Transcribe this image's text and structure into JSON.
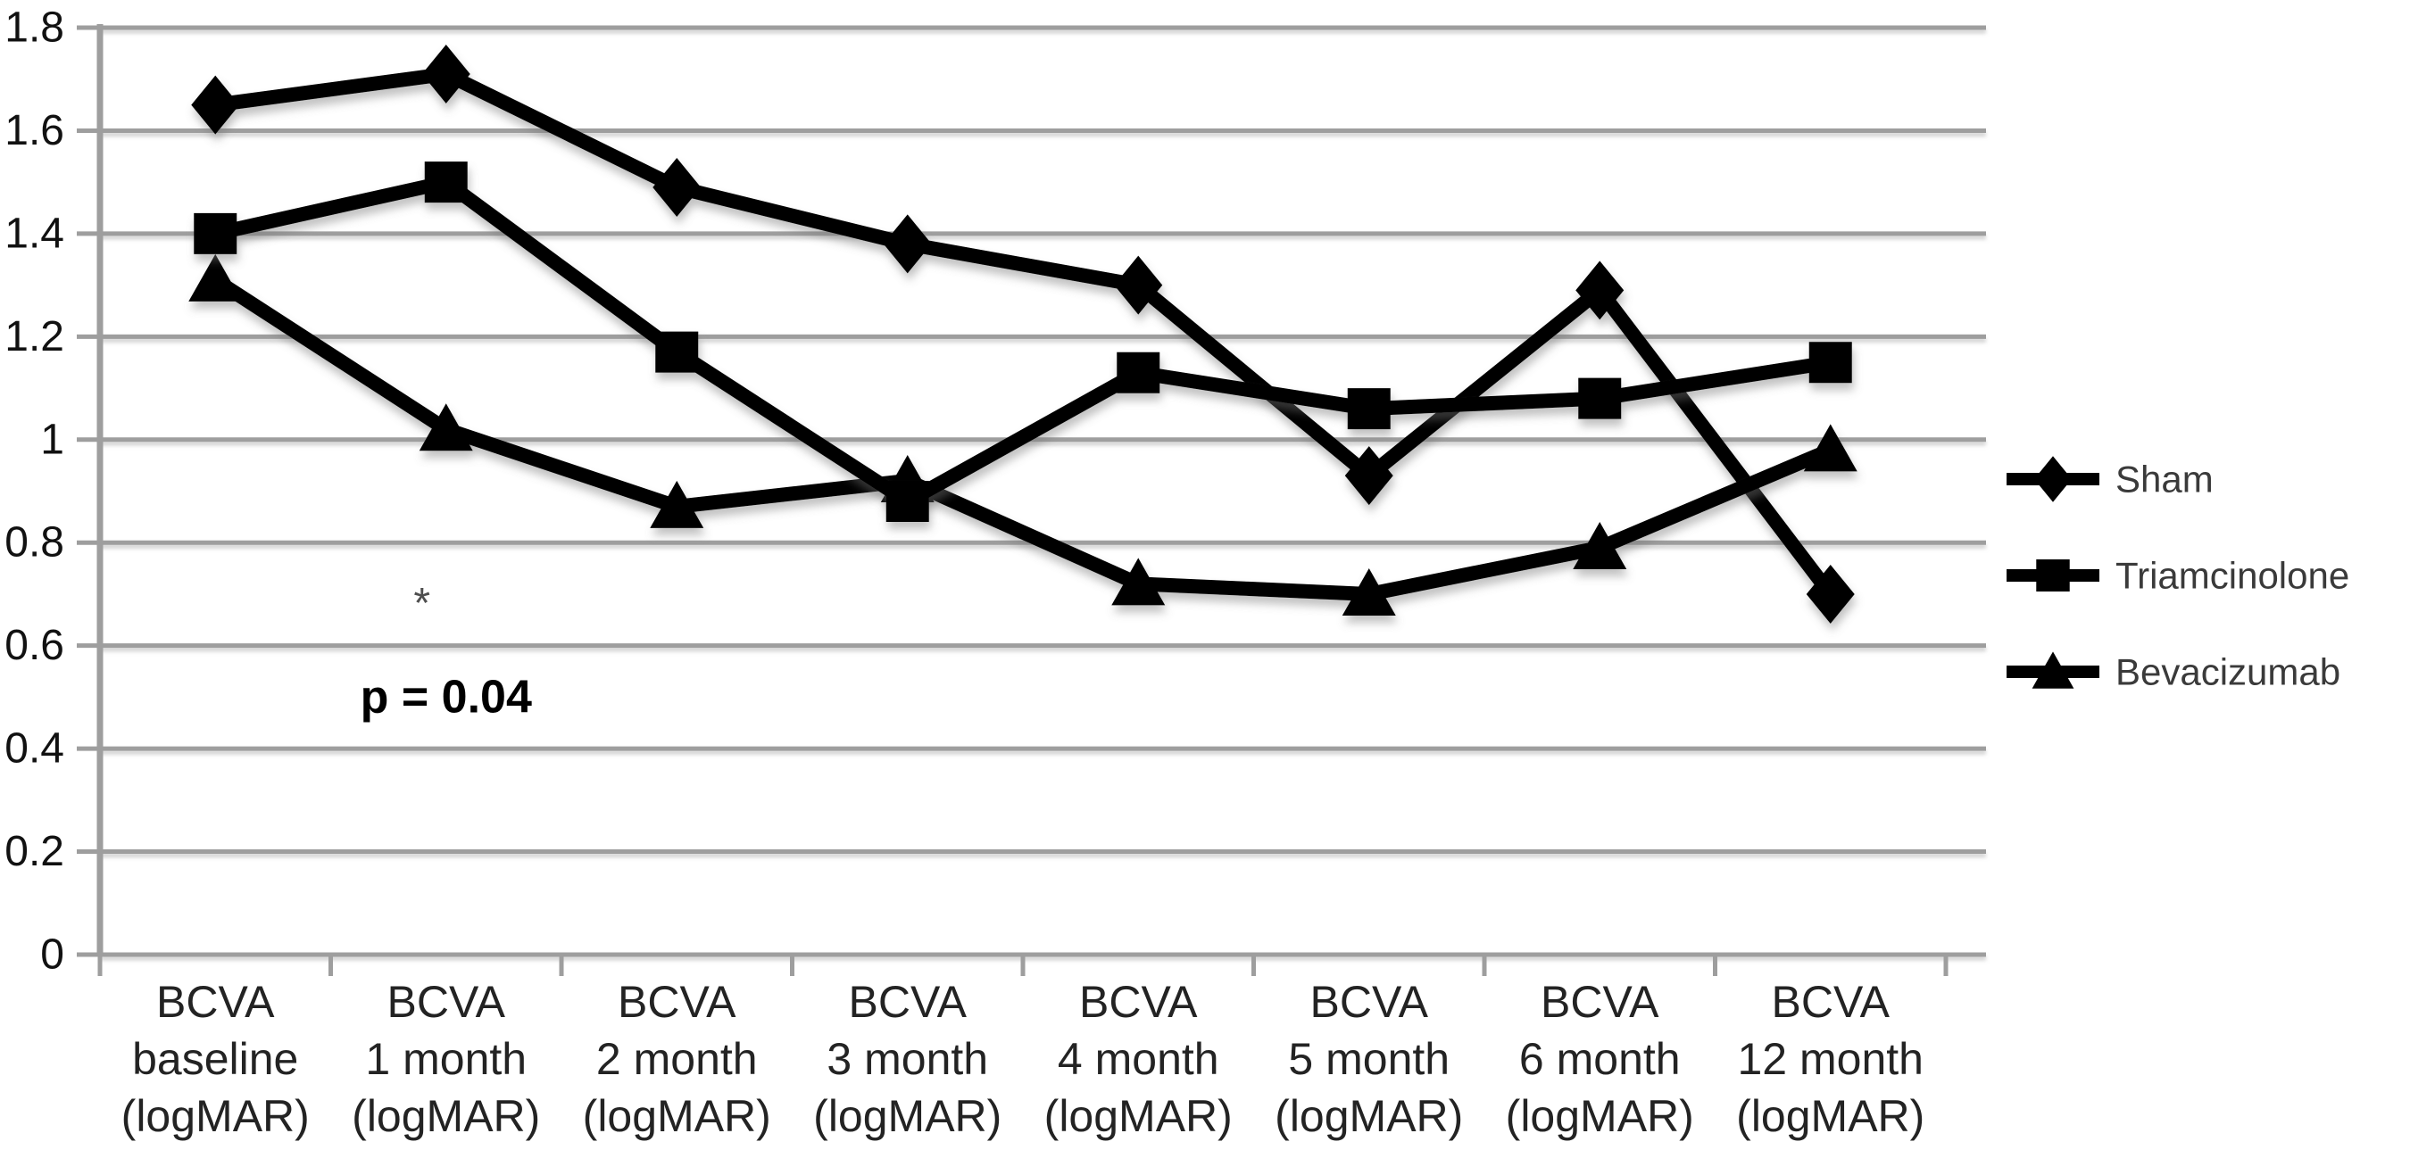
{
  "figure": {
    "background": "#ffffff"
  },
  "chart_data": {
    "type": "line",
    "title": "",
    "xlabel": "",
    "ylabel": "",
    "ylim": [
      0,
      1.8
    ],
    "grid": true,
    "legend_position": "right",
    "y_ticks": [
      "1.8",
      "1.6",
      "1.4",
      "1.2",
      "1",
      "0.8",
      "0.6",
      "0.4",
      "0.2",
      "0"
    ],
    "categories": [
      [
        "BCVA",
        "baseline",
        "(logMAR)"
      ],
      [
        "BCVA",
        "1 month",
        "(logMAR)"
      ],
      [
        "BCVA",
        "2 month",
        "(logMAR)"
      ],
      [
        "BCVA",
        "3 month",
        "(logMAR)"
      ],
      [
        "BCVA",
        "4 month",
        "(logMAR)"
      ],
      [
        "BCVA",
        "5 month",
        "(logMAR)"
      ],
      [
        "BCVA",
        "6 month",
        "(logMAR)"
      ],
      [
        "BCVA",
        "12 month",
        "(logMAR)"
      ]
    ],
    "series": [
      {
        "name": "Sham",
        "marker": "diamond",
        "values": [
          1.65,
          1.71,
          1.49,
          1.38,
          1.3,
          0.93,
          1.29,
          0.7
        ]
      },
      {
        "name": "Triamcinolone",
        "marker": "square",
        "values": [
          1.4,
          1.5,
          1.17,
          0.88,
          1.13,
          1.06,
          1.08,
          1.15
        ]
      },
      {
        "name": "Bevacizumab",
        "marker": "triangle",
        "values": [
          1.31,
          1.02,
          0.87,
          0.92,
          0.72,
          0.7,
          0.79,
          0.98
        ]
      }
    ],
    "annotations": [
      {
        "text": "*",
        "x_category": 1,
        "y_value": 0.655,
        "style": "star"
      },
      {
        "text": "p = 0.04",
        "x_category": 1,
        "y_value": 0.47,
        "style": "pvalue"
      }
    ],
    "colors": {
      "line": "#000000",
      "grid": "#9e9e9e",
      "axis": "#9e9e9e",
      "text": "#1c1c1c"
    }
  }
}
